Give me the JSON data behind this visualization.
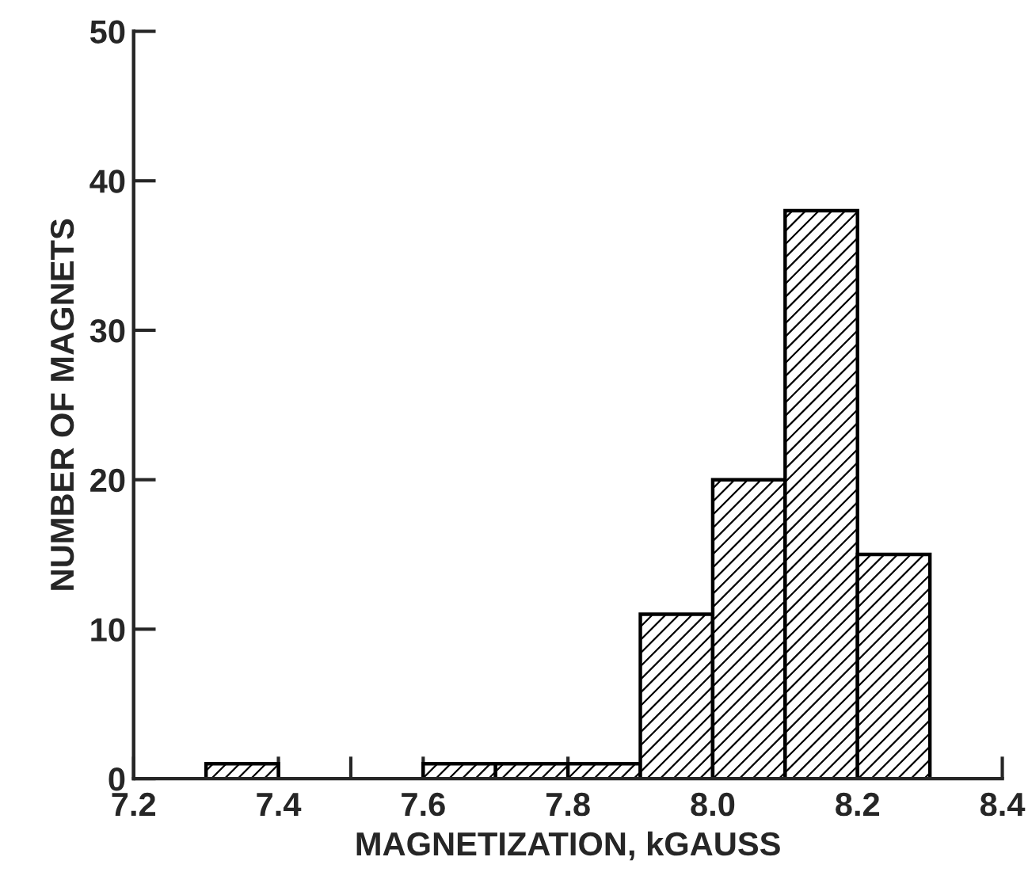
{
  "chart_data": {
    "type": "histogram",
    "xlabel": "MAGNETIZATION, kGAUSS",
    "ylabel": "NUMBER OF MAGNETS",
    "bins": [
      7.3,
      7.4,
      7.5,
      7.6,
      7.7,
      7.8,
      7.9,
      8.0,
      8.1,
      8.2,
      8.3
    ],
    "values": [
      1,
      0,
      0,
      1,
      1,
      1,
      11,
      20,
      38,
      15
    ],
    "xlim": [
      7.2,
      8.4
    ],
    "xticks": [
      7.2,
      7.4,
      {
        "value": 7.5,
        "label": null
      },
      7.6,
      7.8,
      {
        "value": 8.0,
        "label": "8.0"
      },
      8.2,
      8.4
    ],
    "ylim": [
      0,
      50
    ],
    "yticks": [
      0,
      10,
      20,
      30,
      40,
      50
    ],
    "grid": false
  }
}
